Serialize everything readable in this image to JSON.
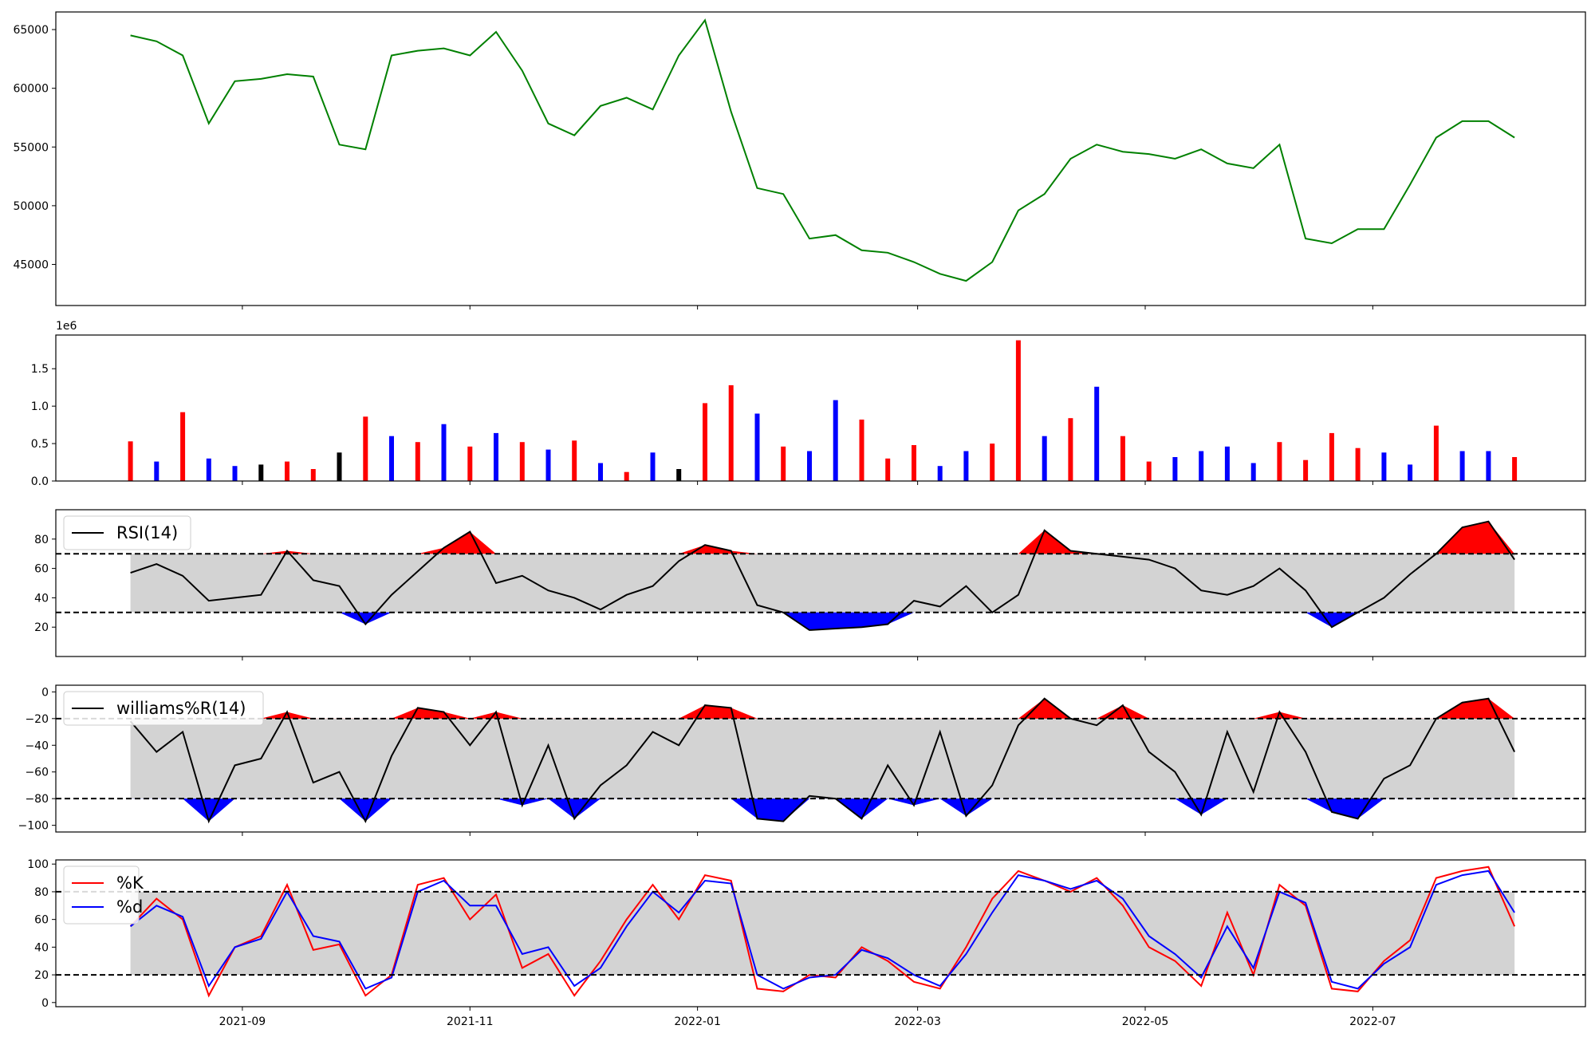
{
  "chart_data": [
    {
      "type": "line",
      "panel": "price",
      "title": "",
      "xlabel": "",
      "ylabel": "",
      "ylim": [
        41500,
        66500
      ],
      "yticks": [
        45000,
        50000,
        55000,
        60000,
        65000
      ],
      "ytick_labels": [
        "45000",
        "50000",
        "55000",
        "60000",
        "65000"
      ],
      "color": "#008000",
      "x": [
        "2021-08-02",
        "2021-08-09",
        "2021-08-16",
        "2021-08-23",
        "2021-08-30",
        "2021-09-06",
        "2021-09-13",
        "2021-09-20",
        "2021-09-27",
        "2021-10-04",
        "2021-10-11",
        "2021-10-18",
        "2021-10-25",
        "2021-11-01",
        "2021-11-08",
        "2021-11-15",
        "2021-11-22",
        "2021-11-29",
        "2021-12-06",
        "2021-12-13",
        "2021-12-20",
        "2021-12-27",
        "2022-01-03",
        "2022-01-10",
        "2022-01-17",
        "2022-01-24",
        "2022-01-31",
        "2022-02-07",
        "2022-02-14",
        "2022-02-21",
        "2022-02-28",
        "2022-03-07",
        "2022-03-14",
        "2022-03-21",
        "2022-03-28",
        "2022-04-04",
        "2022-04-11",
        "2022-04-18",
        "2022-04-25",
        "2022-05-02",
        "2022-05-09",
        "2022-05-16",
        "2022-05-23",
        "2022-05-30",
        "2022-06-06",
        "2022-06-13",
        "2022-06-20",
        "2022-06-27",
        "2022-07-04",
        "2022-07-11",
        "2022-07-18",
        "2022-07-25",
        "2022-08-01",
        "2022-08-08"
      ],
      "values": [
        64500,
        64000,
        62800,
        57000,
        60600,
        60800,
        61200,
        61000,
        55200,
        54800,
        62800,
        63200,
        63400,
        62800,
        64800,
        61500,
        57000,
        56000,
        58500,
        59200,
        58200,
        62800,
        65800,
        58000,
        51500,
        51000,
        47200,
        47500,
        46200,
        46000,
        45200,
        44200,
        43600,
        45200,
        49600,
        51000,
        54000,
        55200,
        54600,
        54400,
        54000,
        54800,
        53600,
        53200,
        55200,
        47200,
        46800,
        48000,
        48000,
        51800,
        55800,
        57200,
        57200,
        55800
      ]
    },
    {
      "type": "bar",
      "panel": "volume",
      "title": "",
      "ylim": [
        0,
        1950000
      ],
      "yticks": [
        0,
        500000,
        1000000,
        1500000
      ],
      "ytick_labels": [
        "0.0",
        "0.5",
        "1.0",
        "1.5"
      ],
      "offset_label": "1e6",
      "colors": {
        "up": "#ff0000",
        "down": "#0000ff",
        "flat": "#000000"
      },
      "x": [
        "2021-08-02",
        "2021-08-09",
        "2021-08-16",
        "2021-08-23",
        "2021-08-30",
        "2021-09-06",
        "2021-09-13",
        "2021-09-20",
        "2021-09-27",
        "2021-10-04",
        "2021-10-11",
        "2021-10-18",
        "2021-10-25",
        "2021-11-01",
        "2021-11-08",
        "2021-11-15",
        "2021-11-22",
        "2021-11-29",
        "2021-12-06",
        "2021-12-13",
        "2021-12-20",
        "2021-12-27",
        "2022-01-03",
        "2022-01-10",
        "2022-01-17",
        "2022-01-24",
        "2022-01-31",
        "2022-02-07",
        "2022-02-14",
        "2022-02-21",
        "2022-02-28",
        "2022-03-07",
        "2022-03-14",
        "2022-03-21",
        "2022-03-28",
        "2022-04-04",
        "2022-04-11",
        "2022-04-18",
        "2022-04-25",
        "2022-05-02",
        "2022-05-09",
        "2022-05-16",
        "2022-05-23",
        "2022-05-30",
        "2022-06-06",
        "2022-06-13",
        "2022-06-20",
        "2022-06-27",
        "2022-07-04",
        "2022-07-11",
        "2022-07-18",
        "2022-07-25",
        "2022-08-01",
        "2022-08-08"
      ],
      "values": [
        530000,
        260000,
        920000,
        300000,
        200000,
        220000,
        260000,
        160000,
        380000,
        860000,
        600000,
        520000,
        760000,
        460000,
        640000,
        520000,
        420000,
        540000,
        240000,
        120000,
        380000,
        160000,
        1040000,
        1280000,
        900000,
        460000,
        400000,
        1080000,
        820000,
        300000,
        480000,
        200000,
        400000,
        500000,
        1880000,
        600000,
        840000,
        1260000,
        600000,
        260000,
        320000,
        400000,
        460000,
        240000,
        520000,
        280000,
        640000,
        440000,
        380000,
        220000,
        740000,
        400000,
        400000,
        320000
      ],
      "directions": [
        "up",
        "down",
        "up",
        "down",
        "down",
        "flat",
        "up",
        "up",
        "flat",
        "up",
        "down",
        "up",
        "down",
        "up",
        "down",
        "up",
        "down",
        "up",
        "down",
        "up",
        "down",
        "flat",
        "up",
        "up",
        "down",
        "up",
        "down",
        "down",
        "up",
        "up",
        "up",
        "down",
        "down",
        "up",
        "up",
        "down",
        "up",
        "down",
        "up",
        "up",
        "down",
        "down",
        "down",
        "down",
        "up",
        "up",
        "up",
        "up",
        "down",
        "down",
        "up",
        "down",
        "down",
        "up"
      ]
    },
    {
      "type": "area",
      "panel": "rsi",
      "ylim": [
        0,
        100
      ],
      "yticks": [
        20,
        40,
        60,
        80
      ],
      "ytick_labels": [
        "20",
        "40",
        "60",
        "80"
      ],
      "band": [
        30,
        70
      ],
      "band_color": "#d3d3d3",
      "over_color": "#ff0000",
      "under_color": "#0000ff",
      "line_color": "#000000",
      "legend": {
        "placement": "top-left",
        "entries": [
          {
            "label": "RSI(14)",
            "color": "#000000"
          }
        ]
      },
      "x": [
        "2021-08-02",
        "2021-08-09",
        "2021-08-16",
        "2021-08-23",
        "2021-08-30",
        "2021-09-06",
        "2021-09-13",
        "2021-09-20",
        "2021-09-27",
        "2021-10-04",
        "2021-10-11",
        "2021-10-18",
        "2021-10-25",
        "2021-11-01",
        "2021-11-08",
        "2021-11-15",
        "2021-11-22",
        "2021-11-29",
        "2021-12-06",
        "2021-12-13",
        "2021-12-20",
        "2021-12-27",
        "2022-01-03",
        "2022-01-10",
        "2022-01-17",
        "2022-01-24",
        "2022-01-31",
        "2022-02-07",
        "2022-02-14",
        "2022-02-21",
        "2022-02-28",
        "2022-03-07",
        "2022-03-14",
        "2022-03-21",
        "2022-03-28",
        "2022-04-04",
        "2022-04-11",
        "2022-04-18",
        "2022-04-25",
        "2022-05-02",
        "2022-05-09",
        "2022-05-16",
        "2022-05-23",
        "2022-05-30",
        "2022-06-06",
        "2022-06-13",
        "2022-06-20",
        "2022-06-27",
        "2022-07-04",
        "2022-07-11",
        "2022-07-18",
        "2022-07-25",
        "2022-08-01",
        "2022-08-08"
      ],
      "values": [
        57,
        63,
        55,
        38,
        40,
        42,
        72,
        52,
        48,
        22,
        42,
        58,
        74,
        85,
        50,
        55,
        45,
        40,
        32,
        42,
        48,
        65,
        76,
        72,
        35,
        30,
        18,
        19,
        20,
        22,
        38,
        34,
        48,
        30,
        42,
        86,
        72,
        70,
        68,
        66,
        60,
        45,
        42,
        48,
        60,
        45,
        20,
        30,
        40,
        56,
        70,
        88,
        92,
        66
      ]
    },
    {
      "type": "area",
      "panel": "williams",
      "ylim": [
        -105,
        5
      ],
      "yticks": [
        -100,
        -80,
        -60,
        -40,
        -20,
        0
      ],
      "ytick_labels": [
        "−100",
        "−80",
        "−60",
        "−40",
        "−20",
        "0"
      ],
      "band": [
        -80,
        -20
      ],
      "band_color": "#d3d3d3",
      "over_color": "#ff0000",
      "under_color": "#0000ff",
      "line_color": "#000000",
      "legend": {
        "placement": "top-left",
        "entries": [
          {
            "label": "williams%R(14)",
            "color": "#000000"
          }
        ]
      },
      "x": [
        "2021-08-02",
        "2021-08-09",
        "2021-08-16",
        "2021-08-23",
        "2021-08-30",
        "2021-09-06",
        "2021-09-13",
        "2021-09-20",
        "2021-09-27",
        "2021-10-04",
        "2021-10-11",
        "2021-10-18",
        "2021-10-25",
        "2021-11-01",
        "2021-11-08",
        "2021-11-15",
        "2021-11-22",
        "2021-11-29",
        "2021-12-06",
        "2021-12-13",
        "2021-12-20",
        "2021-12-27",
        "2022-01-03",
        "2022-01-10",
        "2022-01-17",
        "2022-01-24",
        "2022-01-31",
        "2022-02-07",
        "2022-02-14",
        "2022-02-21",
        "2022-02-28",
        "2022-03-07",
        "2022-03-14",
        "2022-03-21",
        "2022-03-28",
        "2022-04-04",
        "2022-04-11",
        "2022-04-18",
        "2022-04-25",
        "2022-05-02",
        "2022-05-09",
        "2022-05-16",
        "2022-05-23",
        "2022-05-30",
        "2022-06-06",
        "2022-06-13",
        "2022-06-20",
        "2022-06-27",
        "2022-07-04",
        "2022-07-11",
        "2022-07-18",
        "2022-07-25",
        "2022-08-01",
        "2022-08-08"
      ],
      "values": [
        -22,
        -45,
        -30,
        -97,
        -55,
        -50,
        -15,
        -68,
        -60,
        -97,
        -48,
        -12,
        -15,
        -40,
        -15,
        -85,
        -40,
        -95,
        -70,
        -55,
        -30,
        -40,
        -10,
        -12,
        -95,
        -97,
        -78,
        -80,
        -95,
        -55,
        -85,
        -30,
        -93,
        -70,
        -25,
        -5,
        -20,
        -25,
        -10,
        -45,
        -60,
        -92,
        -30,
        -75,
        -15,
        -45,
        -90,
        -95,
        -65,
        -55,
        -20,
        -8,
        -5,
        -45
      ]
    },
    {
      "type": "line",
      "panel": "stochastic",
      "ylim": [
        -3,
        103
      ],
      "yticks": [
        0,
        20,
        40,
        60,
        80,
        100
      ],
      "ytick_labels": [
        "0",
        "20",
        "40",
        "60",
        "80",
        "100"
      ],
      "band": [
        20,
        80
      ],
      "band_color": "#d3d3d3",
      "legend": {
        "placement": "top-left",
        "entries": [
          {
            "label": "%K",
            "color": "#ff0000"
          },
          {
            "label": "%d",
            "color": "#0000ff"
          }
        ]
      },
      "x": [
        "2021-08-02",
        "2021-08-09",
        "2021-08-16",
        "2021-08-23",
        "2021-08-30",
        "2021-09-06",
        "2021-09-13",
        "2021-09-20",
        "2021-09-27",
        "2021-10-04",
        "2021-10-11",
        "2021-10-18",
        "2021-10-25",
        "2021-11-01",
        "2021-11-08",
        "2021-11-15",
        "2021-11-22",
        "2021-11-29",
        "2021-12-06",
        "2021-12-13",
        "2021-12-20",
        "2021-12-27",
        "2022-01-03",
        "2022-01-10",
        "2022-01-17",
        "2022-01-24",
        "2022-01-31",
        "2022-02-07",
        "2022-02-14",
        "2022-02-21",
        "2022-02-28",
        "2022-03-07",
        "2022-03-14",
        "2022-03-21",
        "2022-03-28",
        "2022-04-04",
        "2022-04-11",
        "2022-04-18",
        "2022-04-25",
        "2022-05-02",
        "2022-05-09",
        "2022-05-16",
        "2022-05-23",
        "2022-05-30",
        "2022-06-06",
        "2022-06-13",
        "2022-06-20",
        "2022-06-27",
        "2022-07-04",
        "2022-07-11",
        "2022-07-18",
        "2022-07-25",
        "2022-08-01",
        "2022-08-08"
      ],
      "series": [
        {
          "name": "%K",
          "color": "#ff0000",
          "values": [
            55,
            75,
            60,
            5,
            40,
            48,
            85,
            38,
            42,
            5,
            20,
            85,
            90,
            60,
            78,
            25,
            35,
            5,
            30,
            60,
            85,
            60,
            92,
            88,
            10,
            8,
            20,
            18,
            40,
            30,
            15,
            10,
            40,
            75,
            95,
            88,
            80,
            90,
            70,
            40,
            30,
            12,
            65,
            20,
            85,
            70,
            10,
            8,
            30,
            45,
            90,
            95,
            98,
            55
          ]
        },
        {
          "name": "%d",
          "color": "#0000ff",
          "values": [
            55,
            70,
            62,
            12,
            40,
            46,
            80,
            48,
            44,
            10,
            18,
            80,
            88,
            70,
            70,
            35,
            40,
            12,
            25,
            55,
            80,
            65,
            88,
            86,
            20,
            10,
            18,
            20,
            38,
            32,
            20,
            12,
            35,
            65,
            92,
            88,
            82,
            88,
            75,
            48,
            35,
            18,
            55,
            25,
            80,
            72,
            15,
            10,
            28,
            40,
            85,
            92,
            95,
            65
          ]
        }
      ]
    }
  ],
  "xaxis": {
    "ticks": [
      "2021-09",
      "2021-11",
      "2022-01",
      "2022-03",
      "2022-05",
      "2022-07"
    ],
    "tick_labels": [
      "2021-09",
      "2021-11",
      "2022-01",
      "2022-03",
      "2022-05",
      "2022-07"
    ],
    "min": "2021-07-13",
    "max": "2022-08-27"
  }
}
